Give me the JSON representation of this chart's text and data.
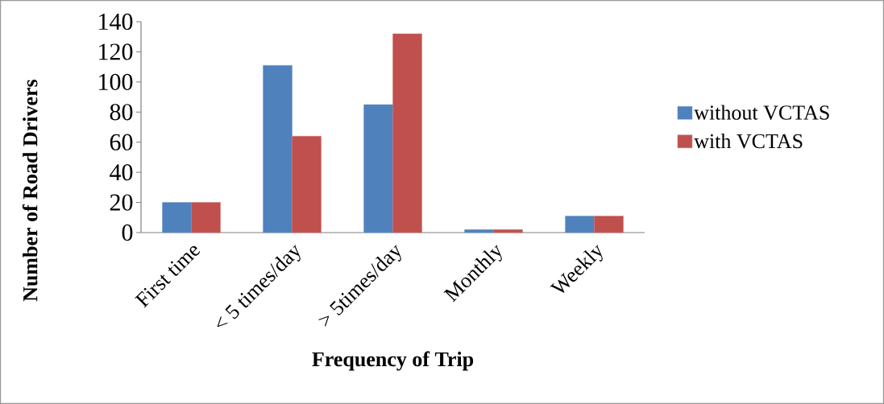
{
  "chart_data": {
    "type": "bar",
    "xlabel": "Frequency of Trip",
    "ylabel": "Number of Road Drivers",
    "categories": [
      "First time",
      "< 5 times/day",
      "> 5times/day",
      "Monthly",
      "Weekly"
    ],
    "series": [
      {
        "name": "without VCTAS",
        "color": "#4f81bd",
        "values": [
          20,
          111,
          85,
          2,
          11
        ]
      },
      {
        "name": "with VCTAS",
        "color": "#c0504d",
        "values": [
          20,
          64,
          132,
          2,
          11
        ]
      }
    ],
    "ylim": [
      0,
      140
    ],
    "yticks": [
      0,
      20,
      40,
      60,
      80,
      100,
      120,
      140
    ],
    "legend": "right"
  }
}
